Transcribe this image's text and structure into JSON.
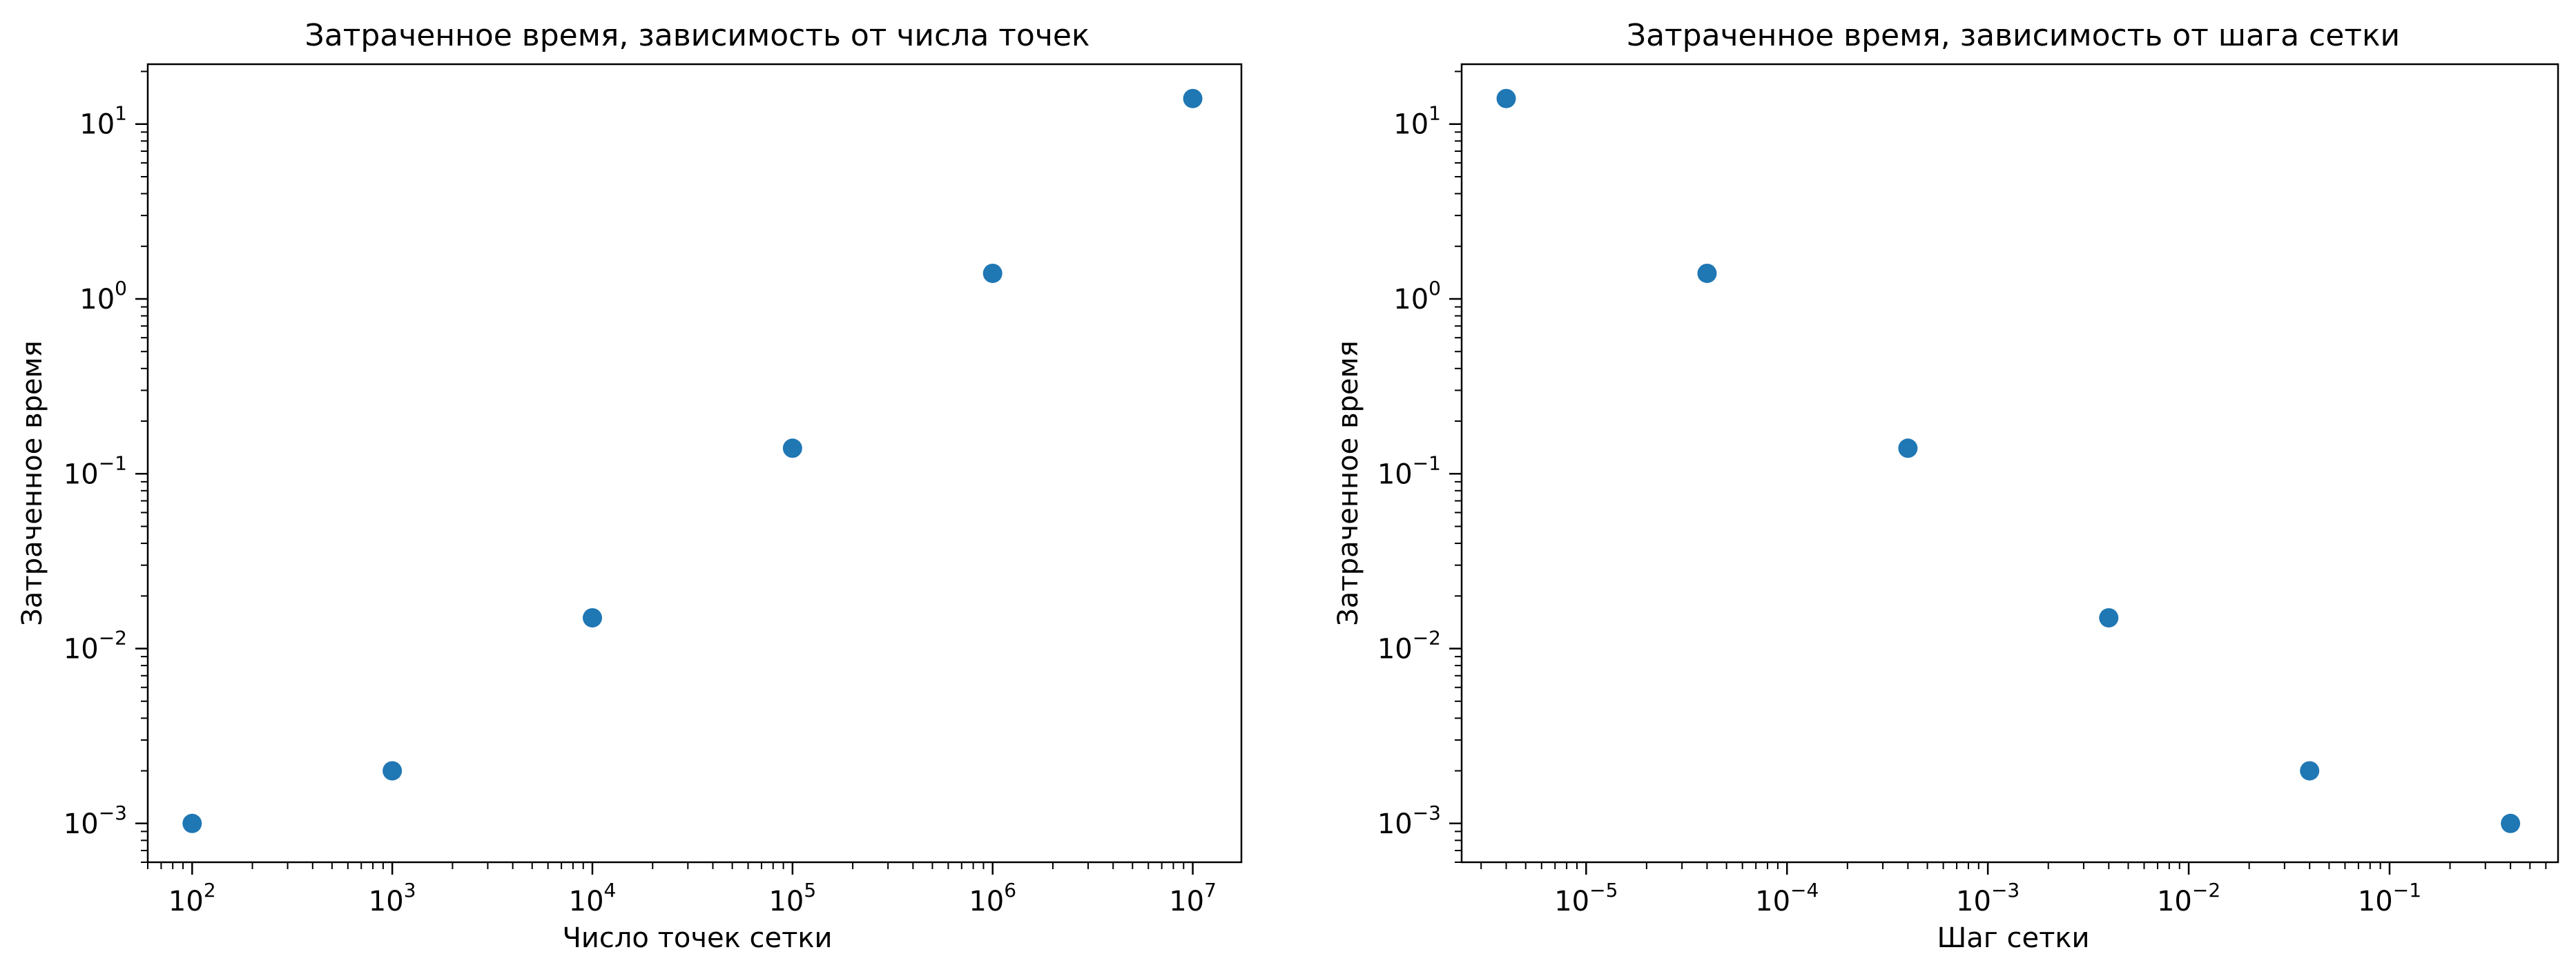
{
  "chart_data": [
    {
      "type": "scatter",
      "title": "Затраченное время, зависимость от числа точек",
      "xlabel": "Число точек сетки",
      "ylabel": "Затраченное время",
      "xscale": "log",
      "yscale": "log",
      "xlim": [
        60,
        17500000
      ],
      "ylim": [
        0.0006,
        22
      ],
      "grid": false,
      "x_ticks": [
        {
          "base": "10",
          "exp": "2",
          "value": 100
        },
        {
          "base": "10",
          "exp": "3",
          "value": 1000
        },
        {
          "base": "10",
          "exp": "4",
          "value": 10000
        },
        {
          "base": "10",
          "exp": "5",
          "value": 100000
        },
        {
          "base": "10",
          "exp": "6",
          "value": 1000000
        },
        {
          "base": "10",
          "exp": "7",
          "value": 10000000
        }
      ],
      "y_ticks": [
        {
          "base": "10",
          "exp": "−3",
          "value": 0.001
        },
        {
          "base": "10",
          "exp": "−2",
          "value": 0.01
        },
        {
          "base": "10",
          "exp": "−1",
          "value": 0.1
        },
        {
          "base": "10",
          "exp": "0",
          "value": 1
        },
        {
          "base": "10",
          "exp": "1",
          "value": 10
        }
      ],
      "series": [
        {
          "color": "#1f77b4",
          "x": [
            100,
            1000,
            10000,
            100000,
            1000000,
            10000000
          ],
          "y": [
            0.001,
            0.002,
            0.015,
            0.14,
            1.4,
            14
          ]
        }
      ]
    },
    {
      "type": "scatter",
      "title": "Затраченное время, зависимость от шага сетки",
      "xlabel": "Шаг сетки",
      "ylabel": "Затраченное время",
      "xscale": "log",
      "yscale": "log",
      "xlim": [
        2.4e-06,
        0.69
      ],
      "ylim": [
        0.0006,
        22
      ],
      "grid": false,
      "x_ticks": [
        {
          "base": "10",
          "exp": "−5",
          "value": 1e-05
        },
        {
          "base": "10",
          "exp": "−4",
          "value": 0.0001
        },
        {
          "base": "10",
          "exp": "−3",
          "value": 0.001
        },
        {
          "base": "10",
          "exp": "−2",
          "value": 0.01
        },
        {
          "base": "10",
          "exp": "−1",
          "value": 0.1
        }
      ],
      "y_ticks": [
        {
          "base": "10",
          "exp": "−3",
          "value": 0.001
        },
        {
          "base": "10",
          "exp": "−2",
          "value": 0.01
        },
        {
          "base": "10",
          "exp": "−1",
          "value": 0.1
        },
        {
          "base": "10",
          "exp": "0",
          "value": 1
        },
        {
          "base": "10",
          "exp": "1",
          "value": 10
        }
      ],
      "series": [
        {
          "color": "#1f77b4",
          "x": [
            4e-06,
            4e-05,
            0.0004,
            0.004,
            0.04,
            0.4
          ],
          "y": [
            14,
            1.4,
            0.14,
            0.015,
            0.002,
            0.001
          ]
        }
      ]
    }
  ]
}
